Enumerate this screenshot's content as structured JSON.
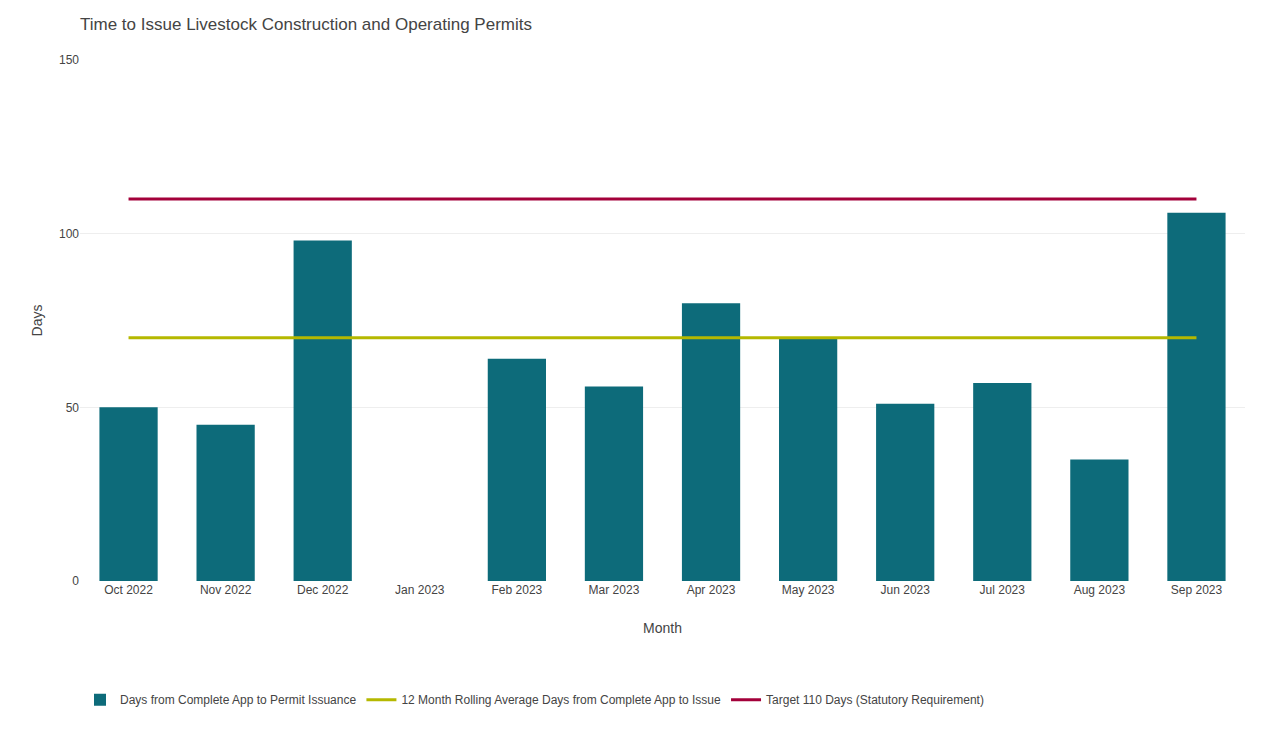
{
  "chart_data": {
    "type": "bar",
    "title": "Time to Issue Livestock Construction and Operating Permits",
    "xlabel": "Month",
    "ylabel": "Days",
    "categories": [
      "Oct 2022",
      "Nov 2022",
      "Dec 2022",
      "Jan 2023",
      "Feb 2023",
      "Mar 2023",
      "Apr 2023",
      "May 2023",
      "Jun 2023",
      "Jul 2023",
      "Aug 2023",
      "Sep 2023"
    ],
    "series": [
      {
        "name": "Days from Complete App to Permit Issuance",
        "type": "bar",
        "color": "#0d6b7a",
        "values": [
          50,
          45,
          98,
          0,
          64,
          56,
          80,
          70,
          51,
          57,
          35,
          106
        ]
      },
      {
        "name": "12 Month Rolling Average Days from Complete App to Issue",
        "type": "line",
        "color": "#b5b800",
        "values": [
          70,
          70,
          70,
          70,
          70,
          70,
          70,
          70,
          70,
          70,
          70,
          70
        ]
      },
      {
        "name": "Target 110 Days (Statutory Requirement)",
        "type": "line",
        "color": "#a3003a",
        "values": [
          110,
          110,
          110,
          110,
          110,
          110,
          110,
          110,
          110,
          110,
          110,
          110
        ]
      }
    ],
    "ylim": [
      0,
      150
    ],
    "yticks": [
      0,
      50,
      100,
      150
    ],
    "grid": true,
    "legend": "bottom"
  }
}
